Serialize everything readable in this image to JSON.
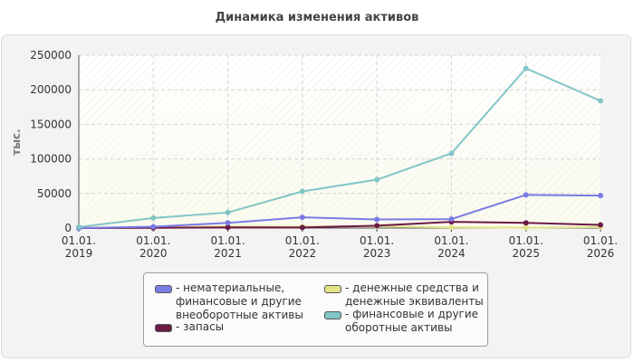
{
  "chart_data": {
    "type": "line",
    "title": "Динамика изменения активов",
    "ylabel": "тыс.",
    "xlabel": "",
    "x": [
      "01.01.\n2019",
      "01.01.\n2020",
      "01.01.\n2021",
      "01.01.\n2022",
      "01.01.\n2023",
      "01.01.\n2024",
      "01.01.\n2025",
      "01.01.\n2026"
    ],
    "ylim": [
      0,
      250000
    ],
    "yticks": [
      "250000",
      "200000",
      "150000",
      "100000",
      "50000",
      "0"
    ],
    "grid": true,
    "legend_position": "bottom",
    "series": [
      {
        "name": "нематериальные, финансовые и другие внеоборотные активы",
        "legend_label": "- нематериальные,\nфинансовые и другие\nвнеоборотные активы",
        "color": "#7b7be6",
        "values": [
          0,
          2000,
          7500,
          15500,
          12500,
          13000,
          48000,
          47000
        ]
      },
      {
        "name": "запасы",
        "legend_label": "- запасы",
        "color": "#6b1a45",
        "values": [
          0,
          300,
          1000,
          800,
          3500,
          9000,
          7500,
          4500
        ]
      },
      {
        "name": "денежные средства и денежные эквиваленты",
        "legend_label": "- денежные средства и\nденежные эквиваленты",
        "color": "#e3e38a",
        "values": [
          0,
          1000,
          2500,
          2000,
          2500,
          1000,
          500,
          1500
        ]
      },
      {
        "name": "финансовые и другие оборотные активы",
        "legend_label": "- финансовые и другие\nоборотные активы",
        "color": "#82c5c5",
        "values": [
          1500,
          14500,
          22500,
          53000,
          70000,
          108000,
          231000,
          184000
        ]
      }
    ]
  }
}
